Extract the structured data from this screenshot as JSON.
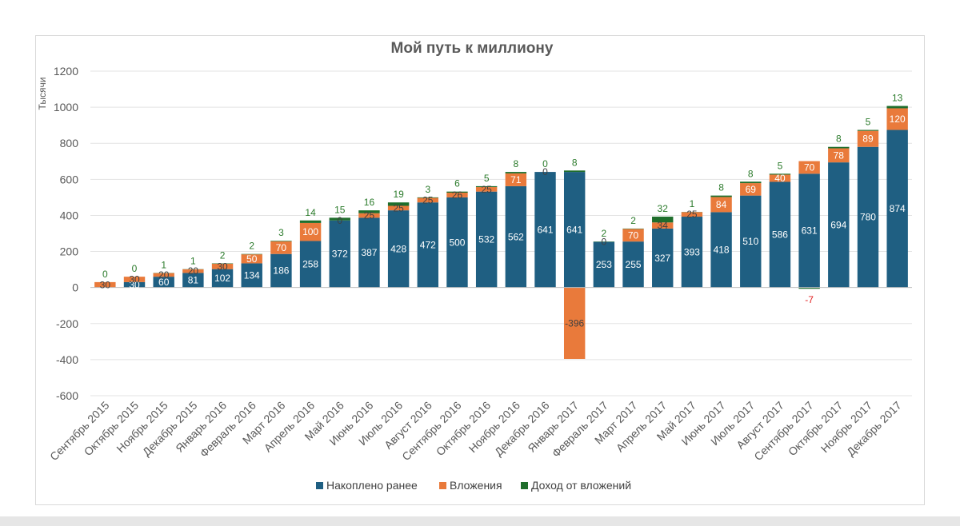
{
  "chart_data": {
    "type": "bar",
    "stacked": true,
    "title": "Мой путь к миллиону",
    "ylabel": "Тысячи",
    "xlabel": "",
    "ylim": [
      -600,
      1200
    ],
    "yticks": [
      1200,
      1000,
      800,
      600,
      400,
      200,
      0,
      -200,
      -400,
      -600
    ],
    "grid": true,
    "legend_position": "bottom",
    "categories": [
      "Сентябрь 2015",
      "Октябрь 2015",
      "Ноябрь 2015",
      "Декабрь 2015",
      "Январь 2016",
      "Февраль 2016",
      "Март 2016",
      "Апрель 2016",
      "Май 2016",
      "Июнь 2016",
      "Июль 2016",
      "Август 2016",
      "Сентябрь 2016",
      "Октябрь 2016",
      "Ноябрь 2016",
      "Декабрь 2016",
      "Январь 2017",
      "Февраль 2017",
      "Март 2017",
      "Апрель 2017",
      "Май 2017",
      "Июнь 2017",
      "Июль 2017",
      "Август 2017",
      "Сентябрь 2017",
      "Октябрь 2017",
      "Ноябрь 2017",
      "Декабрь 2017"
    ],
    "series": [
      {
        "name": "Накоплено ранее",
        "color": "#1f5f82",
        "values": [
          0,
          30,
          60,
          81,
          102,
          134,
          186,
          258,
          372,
          387,
          428,
          472,
          500,
          532,
          562,
          641,
          641,
          253,
          255,
          327,
          393,
          418,
          510,
          586,
          631,
          694,
          780,
          874
        ],
        "labels": [
          "",
          "30",
          "60",
          "81",
          "102",
          "134",
          "186",
          "258",
          "372",
          "387",
          "428",
          "472",
          "500",
          "532",
          "562",
          "641",
          "641",
          "253",
          "255",
          "327",
          "393",
          "418",
          "510",
          "586",
          "631",
          "694",
          "780",
          "874"
        ]
      },
      {
        "name": "Вложения",
        "color": "#e97a3b",
        "values": [
          30,
          30,
          20,
          20,
          30,
          50,
          70,
          100,
          0,
          25,
          25,
          25,
          26,
          25,
          71,
          0,
          -396,
          0,
          70,
          34,
          25,
          84,
          69,
          40,
          70,
          78,
          89,
          120
        ],
        "labels": [
          "30",
          "30",
          "20",
          "20",
          "30",
          "50",
          "70",
          "100",
          "0",
          "25",
          "25",
          "25",
          "26",
          "25",
          "71",
          "0",
          "-396",
          "0",
          "70",
          "34",
          "25",
          "84",
          "69",
          "40",
          "70",
          "78",
          "89",
          "120"
        ]
      },
      {
        "name": "Доход от вложений",
        "color": "#1f6e2c",
        "values": [
          0,
          0,
          1,
          1,
          2,
          2,
          3,
          14,
          15,
          16,
          19,
          3,
          6,
          5,
          8,
          0,
          8,
          2,
          2,
          32,
          1,
          8,
          8,
          5,
          -7,
          8,
          5,
          13
        ],
        "labels": [
          "0",
          "0",
          "1",
          "1",
          "2",
          "2",
          "3",
          "14",
          "15",
          "16",
          "19",
          "3",
          "6",
          "5",
          "8",
          "0",
          "8",
          "2",
          "2",
          "32",
          "1",
          "8",
          "8",
          "5",
          "-7",
          "8",
          "5",
          "13"
        ]
      }
    ]
  }
}
